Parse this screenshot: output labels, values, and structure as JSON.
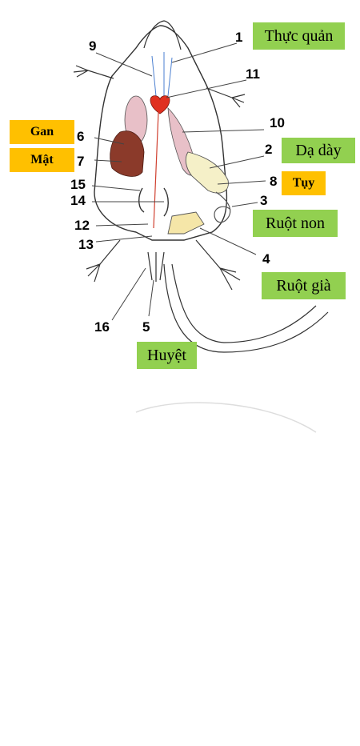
{
  "labels": {
    "thuc_quan": "Thực quản",
    "da_day": "Dạ dày",
    "ruot_non": "Ruột non",
    "ruot_gia": "Ruột già",
    "huyet": "Huyệt",
    "gan": "Gan",
    "mat": "Mật",
    "tuy": "Tụy"
  },
  "numbers": {
    "n1": "1",
    "n2": "2",
    "n3": "3",
    "n4": "4",
    "n5": "5",
    "n6": "6",
    "n7": "7",
    "n8": "8",
    "n9": "9",
    "n10": "10",
    "n11": "11",
    "n12": "12",
    "n13": "13",
    "n14": "14",
    "n15": "15",
    "n16": "16"
  },
  "colors": {
    "green_label": "#92d050",
    "orange_label": "#ffc000",
    "liver": "#8b3a2a",
    "heart": "#e03020",
    "lung": "#e8c0c8"
  }
}
